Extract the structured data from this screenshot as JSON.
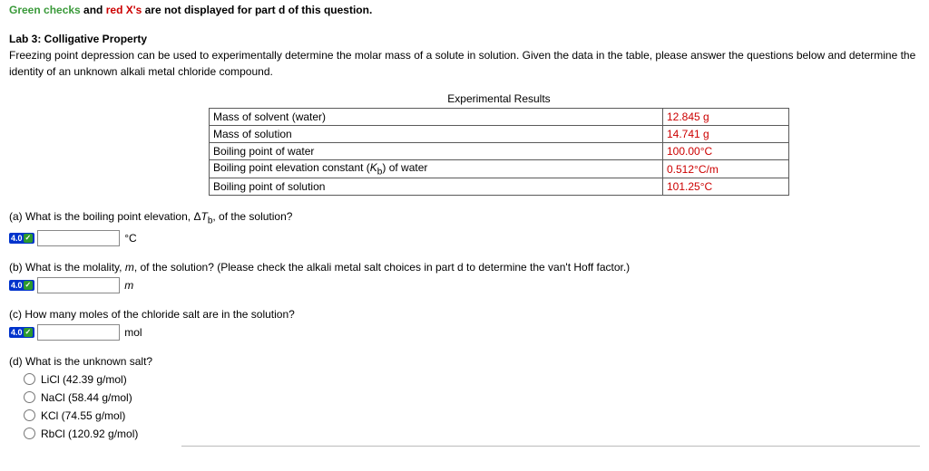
{
  "top_note": {
    "green": "Green checks",
    "mid1": " and ",
    "red": "red X's",
    "mid2": " are not displayed for part d of this question."
  },
  "title": "Lab 3: Colligative Property",
  "intro": "Freezing point depression can be used to experimentally determine the molar mass of a solute in solution. Given the data in the table, please answer the questions below and determine the identity of an unknown alkali metal chloride compound.",
  "table": {
    "caption": "Experimental Results",
    "rows": [
      {
        "label": "Mass of solvent (water)",
        "value": "12.845 g"
      },
      {
        "label": "Mass of solution",
        "value": "14.741 g"
      },
      {
        "label": "Boiling point of water",
        "value": "100.00°C"
      },
      {
        "label_html": "Boiling point elevation constant (<i>K</i><sub>b</sub>) of water",
        "value": "0.512°C/m"
      },
      {
        "label": "Boiling point of solution",
        "value": "101.25°C"
      }
    ]
  },
  "questions": {
    "a": {
      "prompt_html": "(a) What is the boiling point elevation, Δ<i>T</i><sub>b</sub>, of the solution?",
      "badge": "4.0",
      "unit": "°C"
    },
    "b": {
      "prompt_html": "(b) What is the molality, <i>m</i>, of the solution? (Please check the alkali metal salt choices in part d to determine the van't Hoff factor.)",
      "badge": "4.0",
      "unit_html": "<i>m</i>"
    },
    "c": {
      "prompt": "(c) How many moles of the chloride salt are in the solution?",
      "badge": "4.0",
      "unit": "mol"
    },
    "d": {
      "prompt": "(d) What is the unknown salt?",
      "choices": [
        "LiCl (42.39 g/mol)",
        "NaCl (58.44 g/mol)",
        "KCl (74.55 g/mol)",
        "RbCl (120.92 g/mol)"
      ]
    }
  }
}
